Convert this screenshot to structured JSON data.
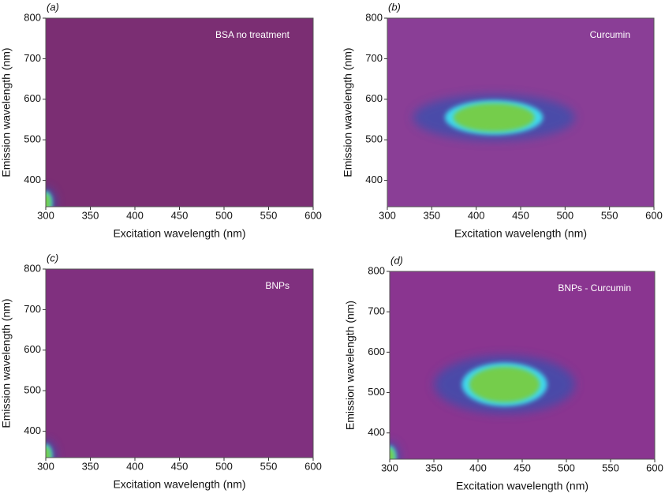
{
  "chart_data": [
    {
      "type": "contour",
      "panel": "(a)",
      "annotation": "BSA no treatment",
      "x_label": "Excitation wavelength (nm)",
      "y_label": "Emission wavelength (nm)",
      "xlim": [
        300,
        600
      ],
      "ylim": [
        335,
        800
      ],
      "xticks": [
        300,
        350,
        400,
        450,
        500,
        550,
        600
      ],
      "yticks": [
        400,
        500,
        600,
        700,
        800
      ],
      "background": "#7b2e73",
      "peaks": [
        {
          "x": 300,
          "y": 345,
          "rx": 6,
          "ry": 25
        }
      ]
    },
    {
      "type": "contour",
      "panel": "(b)",
      "annotation": "Curcumin",
      "x_label": "Excitation wavelength (nm)",
      "y_label": "Emission wavelength (nm)",
      "xlim": [
        300,
        600
      ],
      "ylim": [
        335,
        800
      ],
      "xticks": [
        300,
        350,
        400,
        450,
        500,
        550,
        600
      ],
      "yticks": [
        400,
        500,
        600,
        700,
        800
      ],
      "background": "#8a3e96",
      "peaks": [
        {
          "x": 420,
          "y": 555,
          "rx": 48,
          "ry": 38
        }
      ]
    },
    {
      "type": "contour",
      "panel": "(c)",
      "annotation": "BNPs",
      "x_label": "Excitation wavelength (nm)",
      "y_label": "Emission wavelength (nm)",
      "xlim": [
        300,
        600
      ],
      "ylim": [
        335,
        800
      ],
      "xticks": [
        300,
        350,
        400,
        450,
        500,
        550,
        600
      ],
      "yticks": [
        400,
        500,
        600,
        700,
        800
      ],
      "background": "#80307f",
      "peaks": [
        {
          "x": 300,
          "y": 340,
          "rx": 6,
          "ry": 25
        }
      ]
    },
    {
      "type": "contour",
      "panel": "(d)",
      "annotation": "BNPs - Curcumin",
      "x_label": "Excitation wavelength (nm)",
      "y_label": "Emission wavelength (nm)",
      "xlim": [
        300,
        600
      ],
      "ylim": [
        335,
        800
      ],
      "xticks": [
        300,
        350,
        400,
        450,
        500,
        550,
        600
      ],
      "yticks": [
        400,
        500,
        600,
        700,
        800
      ],
      "background": "#8a3590",
      "peaks": [
        {
          "x": 430,
          "y": 520,
          "rx": 42,
          "ry": 48
        },
        {
          "x": 300,
          "y": 340,
          "rx": 6,
          "ry": 25
        }
      ]
    }
  ]
}
